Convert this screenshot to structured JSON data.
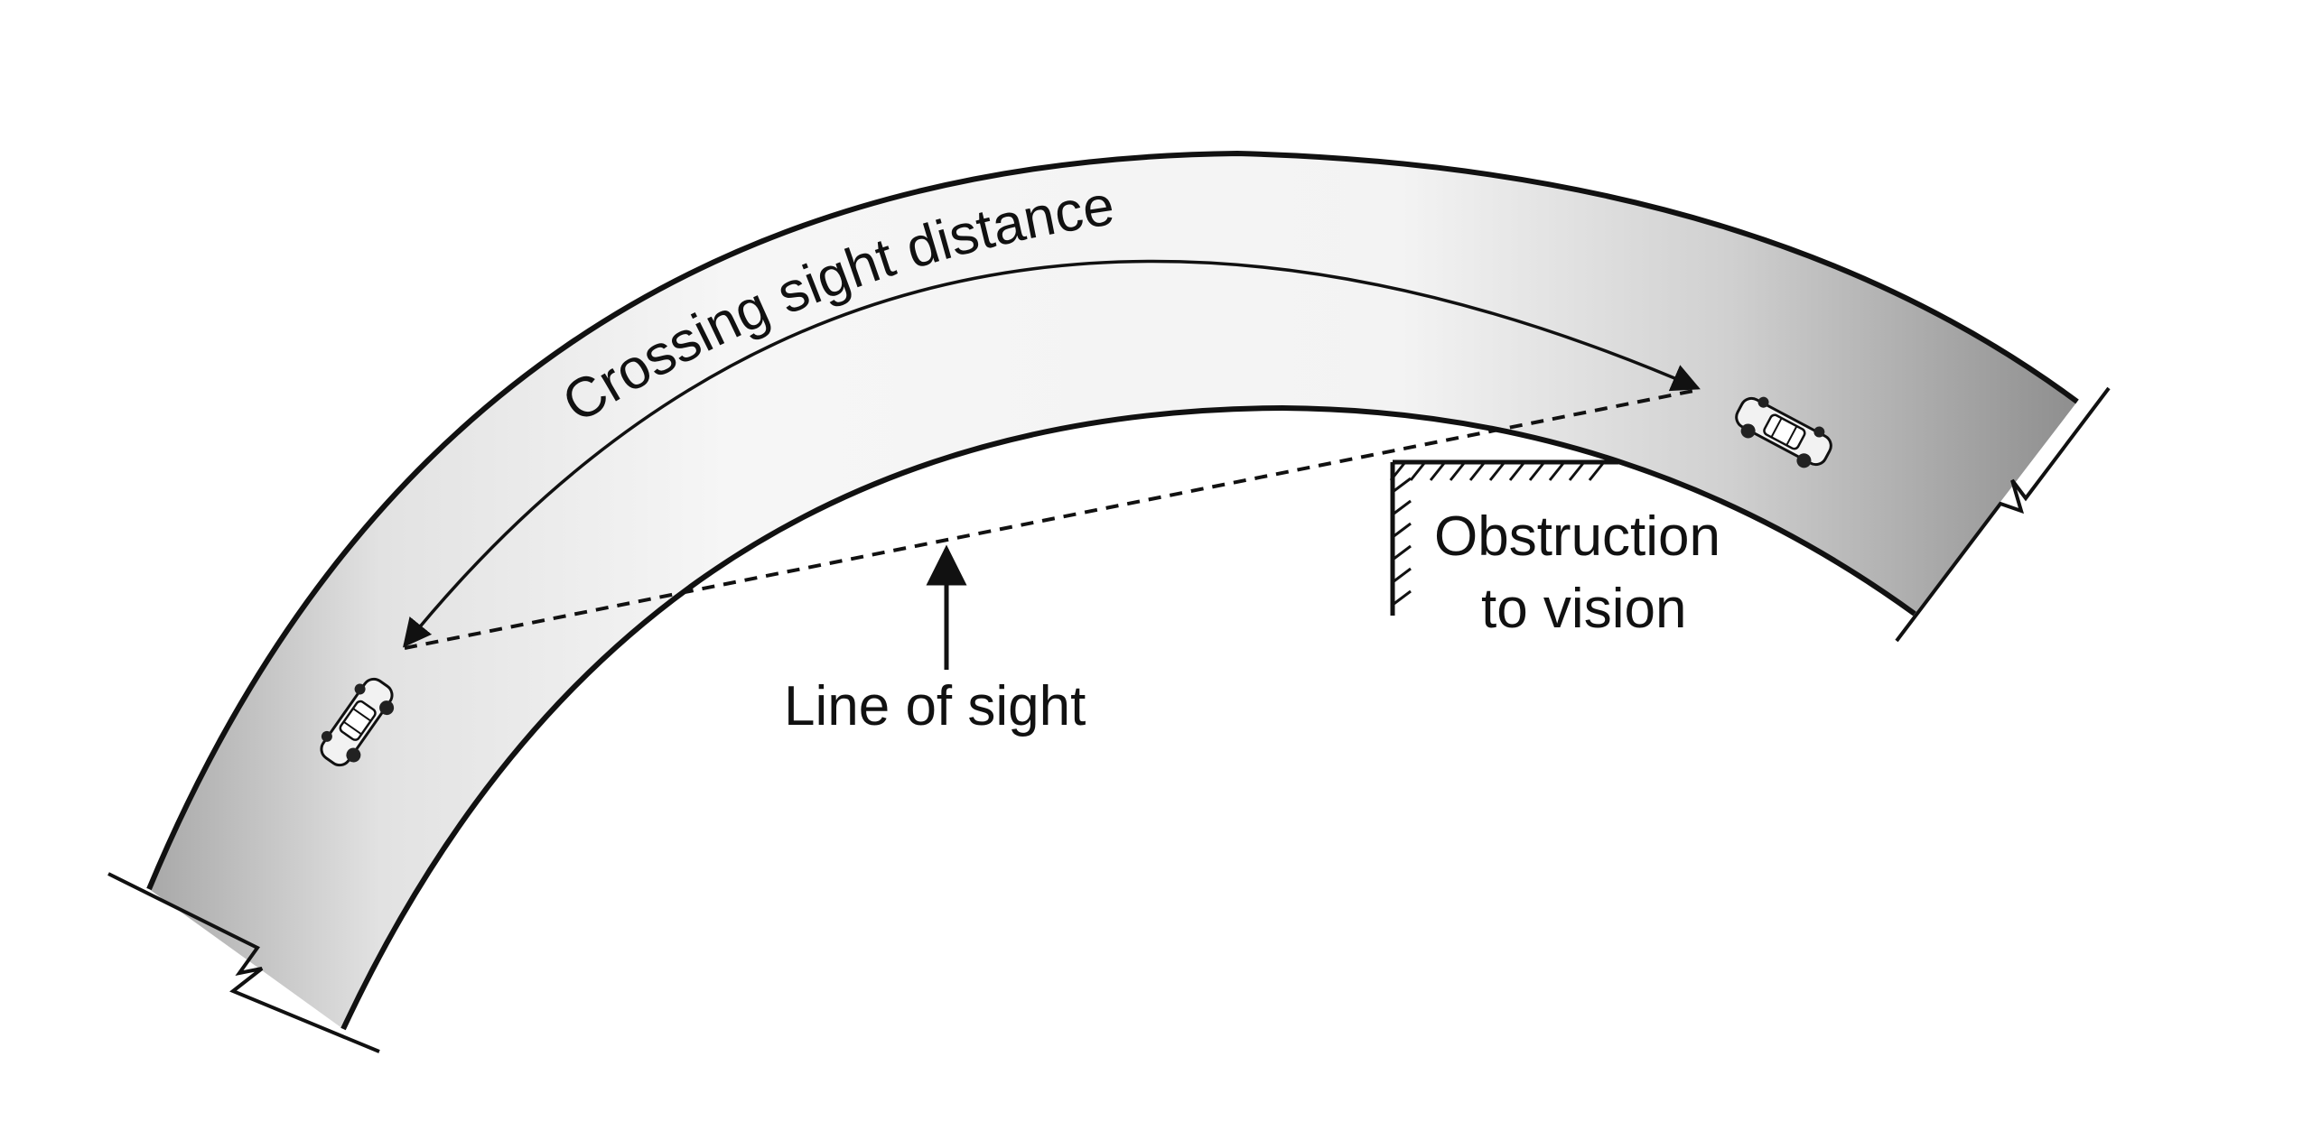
{
  "labels": {
    "crossing_sight_distance": "Crossing sight distance",
    "line_of_sight": "Line of sight",
    "obstruction_line1": "Obstruction",
    "obstruction_line2": "to vision"
  },
  "icons": [
    "car-icon",
    "car-icon",
    "obstruction-hatch-icon",
    "road-break-icon"
  ],
  "colors": {
    "road_fill_light": "#f4f4f4",
    "road_fill_dark": "#9c9c9c",
    "ink": "#111111"
  }
}
